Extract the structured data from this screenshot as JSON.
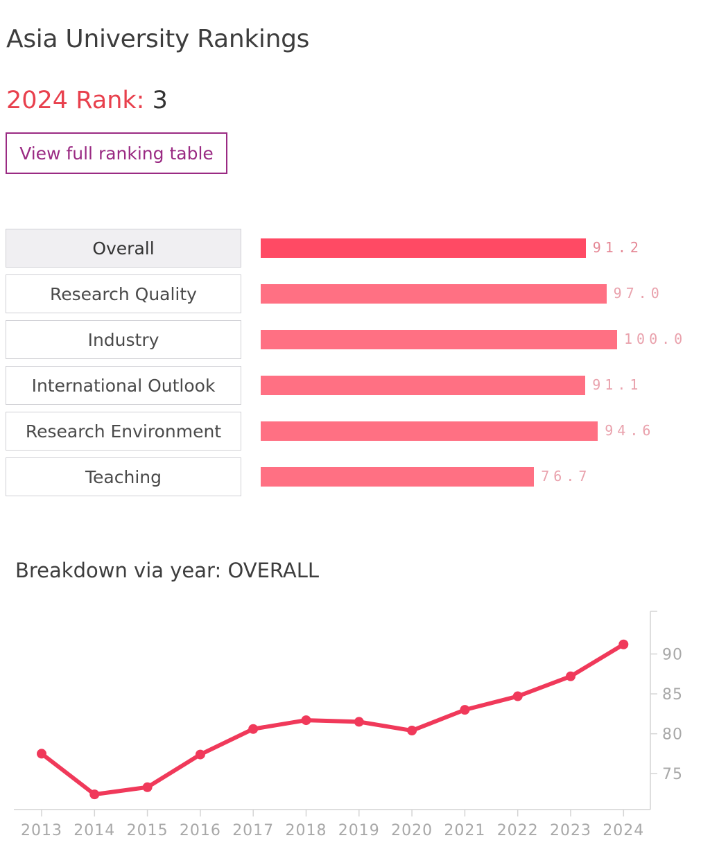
{
  "page": {
    "title": "Asia University Rankings",
    "rank_label": "2024 Rank:",
    "rank_value": "3",
    "view_button": "View full ranking table"
  },
  "colors": {
    "accent": "#e8404d",
    "button": "#9a2a83",
    "bar": "#ff7083",
    "bar_active": "#ff4a64",
    "line": "#f0395a"
  },
  "categories": [
    {
      "label": "Overall",
      "value": "91.2",
      "active": true
    },
    {
      "label": "Research Quality",
      "value": "97.0",
      "active": false
    },
    {
      "label": "Industry",
      "value": "100.0",
      "active": false
    },
    {
      "label": "International Outlook",
      "value": "91.1",
      "active": false
    },
    {
      "label": "Research Environment",
      "value": "94.6",
      "active": false
    },
    {
      "label": "Teaching",
      "value": "76.7",
      "active": false
    }
  ],
  "breakdown": {
    "title": "Breakdown via year: OVERALL"
  },
  "chart_data": [
    {
      "type": "bar",
      "orientation": "horizontal",
      "categories": [
        "Overall",
        "Research Quality",
        "Industry",
        "International Outlook",
        "Research Environment",
        "Teaching"
      ],
      "values": [
        91.2,
        97.0,
        100.0,
        91.1,
        94.6,
        76.7
      ],
      "xlim": [
        0,
        100
      ]
    },
    {
      "type": "line",
      "title": "Breakdown via year: OVERALL",
      "x": [
        "2013",
        "2014",
        "2015",
        "2016",
        "2017",
        "2018",
        "2019",
        "2020",
        "2021",
        "2022",
        "2023",
        "2024"
      ],
      "series": [
        {
          "values": [
            77.5,
            72.4,
            73.3,
            77.4,
            80.6,
            81.7,
            81.5,
            80.4,
            83.0,
            84.7,
            87.2,
            91.2
          ]
        }
      ],
      "yticks": [
        75,
        80,
        85,
        90
      ],
      "ylim": [
        70.5,
        95
      ],
      "y_axis_position": "right",
      "grid": false
    }
  ]
}
